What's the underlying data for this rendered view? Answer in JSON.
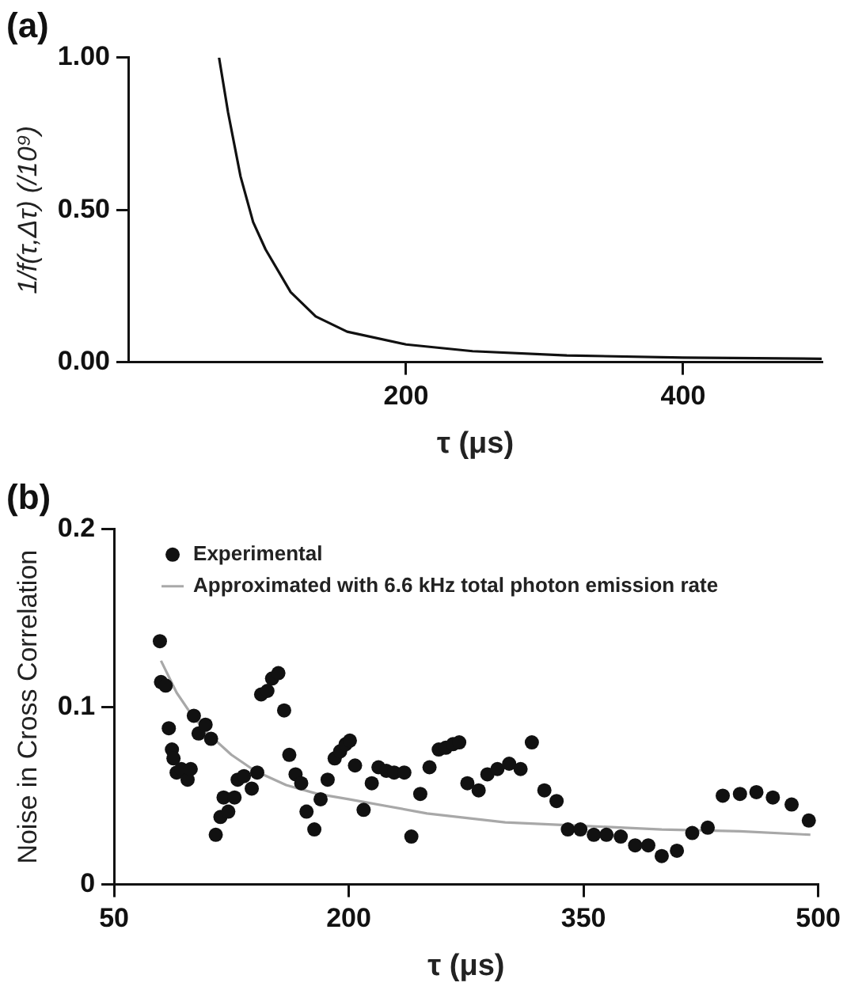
{
  "chart_data": [
    {
      "type": "line",
      "title": "(a)",
      "xlabel": "τ (μs)",
      "ylabel": "1/f(τ,Δτ) (/10⁹)",
      "color": "#111111",
      "marker": "none",
      "x": [
        65,
        71.5,
        80.5,
        89.6,
        98.6,
        116.7,
        134.8,
        157.5,
        200,
        248,
        316,
        400,
        500
      ],
      "values": [
        1.0,
        0.82,
        0.61,
        0.46,
        0.37,
        0.23,
        0.15,
        0.1,
        0.058,
        0.036,
        0.022,
        0.015,
        0.011
      ],
      "xlim": [
        0,
        500
      ],
      "xticks": [
        200,
        400
      ],
      "ylim": [
        0,
        1.0
      ],
      "yticks": [
        {
          "value": 0,
          "label": "0.00"
        },
        {
          "value": 0.5,
          "label": "0.50"
        },
        {
          "value": 1.0,
          "label": "1.00"
        }
      ],
      "grid": false
    },
    {
      "type": "scatter",
      "title": "(b)",
      "xlabel": "τ (μs)",
      "ylabel": "Noise in Cross Correlation",
      "legend": "top left",
      "grid": false,
      "xlim": [
        50,
        500
      ],
      "xticks": [
        50,
        200,
        350,
        500
      ],
      "ylim": [
        0,
        0.2
      ],
      "yticks": [
        0,
        0.1,
        0.2
      ],
      "series": [
        {
          "name": "Experimental",
          "marker": "circle",
          "color": "#111111",
          "x": [
            79.3,
            80,
            83,
            85,
            87,
            88,
            90,
            93,
            97,
            99,
            101,
            104,
            108.5,
            112,
            115,
            118,
            120,
            123,
            127,
            129,
            133,
            138,
            141.5,
            144,
            148,
            151,
            155,
            158.7,
            162,
            166,
            169.6,
            173,
            178,
            182,
            186.5,
            191,
            194.5,
            198,
            200.7,
            204,
            209.5,
            214.7,
            219,
            224,
            229,
            235.5,
            240,
            245.7,
            251.6,
            257.5,
            262,
            266.6,
            270.6,
            275.8,
            283,
            288.6,
            295,
            302.5,
            309.8,
            317,
            325,
            332.8,
            340,
            348,
            356.6,
            364.7,
            373.8,
            383,
            391.4,
            400,
            409.7,
            419.5,
            429.4,
            439,
            450,
            460.5,
            471,
            483,
            494
          ],
          "values": [
            0.137,
            0.114,
            0.112,
            0.088,
            0.076,
            0.071,
            0.063,
            0.065,
            0.059,
            0.065,
            0.095,
            0.085,
            0.09,
            0.082,
            0.028,
            0.038,
            0.049,
            0.041,
            0.049,
            0.059,
            0.061,
            0.054,
            0.063,
            0.107,
            0.109,
            0.116,
            0.119,
            0.098,
            0.073,
            0.062,
            0.057,
            0.041,
            0.031,
            0.048,
            0.059,
            0.071,
            0.075,
            0.079,
            0.081,
            0.067,
            0.042,
            0.057,
            0.066,
            0.064,
            0.063,
            0.063,
            0.027,
            0.051,
            0.066,
            0.076,
            0.077,
            0.079,
            0.08,
            0.057,
            0.053,
            0.062,
            0.065,
            0.068,
            0.065,
            0.08,
            0.053,
            0.047,
            0.031,
            0.031,
            0.028,
            0.028,
            0.027,
            0.022,
            0.022,
            0.016,
            0.019,
            0.029,
            0.032,
            0.05,
            0.051,
            0.052,
            0.049,
            0.045,
            0.036
          ]
        },
        {
          "name": "Approximated with 6.6 kHz total photon emission rate",
          "type": "line",
          "marker": "none",
          "color": "#a8a8a8",
          "x": [
            80,
            90,
            100,
            110,
            125,
            140,
            160,
            180,
            200,
            250,
            300,
            350,
            400,
            450,
            495
          ],
          "values": [
            0.126,
            0.108,
            0.095,
            0.085,
            0.073,
            0.064,
            0.056,
            0.051,
            0.048,
            0.04,
            0.035,
            0.033,
            0.031,
            0.03,
            0.028
          ]
        }
      ]
    }
  ]
}
